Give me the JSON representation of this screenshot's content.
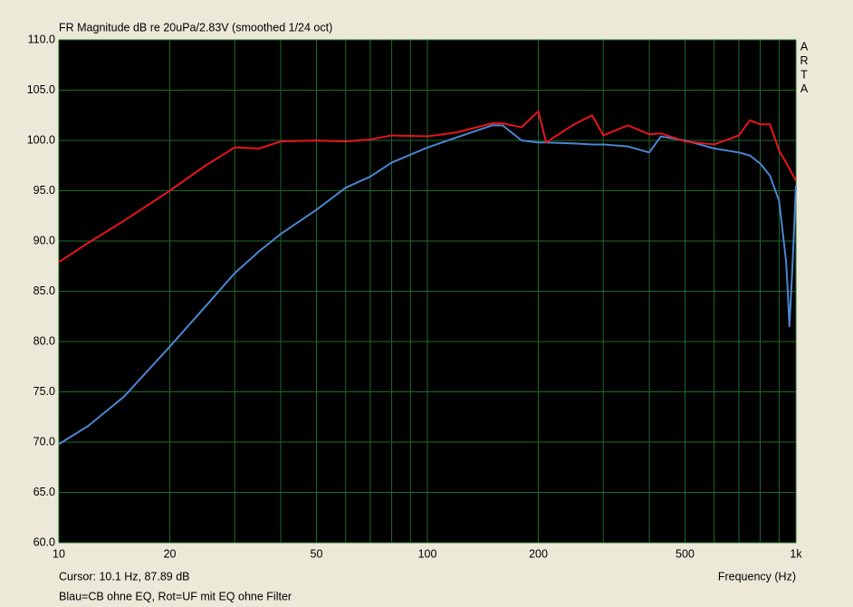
{
  "chart_data": {
    "type": "line",
    "title": "FR Magnitude dB re 20uPa/2.83V (smoothed 1/24 oct)",
    "watermark": "ARTA",
    "cursor_text": "Cursor: 10.1 Hz, 87.89 dB",
    "x_label": "Frequency (Hz)",
    "note": "Blau=CB ohne EQ, Rot=UF mit EQ ohne Filter",
    "xscale": "log",
    "grid": true,
    "xlim": [
      10,
      1000
    ],
    "ylim": [
      60,
      110
    ],
    "xticks": [
      10,
      20,
      50,
      100,
      200,
      500,
      {
        "value": 1000,
        "label": "1k"
      }
    ],
    "xminorticks": [
      30,
      40,
      60,
      70,
      80,
      90,
      300,
      400,
      600,
      700,
      800,
      900
    ],
    "yticks": [
      {
        "value": 60,
        "label": "60.0"
      },
      {
        "value": 65,
        "label": "65.0"
      },
      {
        "value": 70,
        "label": "70.0"
      },
      {
        "value": 75,
        "label": "75.0"
      },
      {
        "value": 80,
        "label": "80.0"
      },
      {
        "value": 85,
        "label": "85.0"
      },
      {
        "value": 90,
        "label": "90.0"
      },
      {
        "value": 95,
        "label": "95.0"
      },
      {
        "value": 100,
        "label": "100.0"
      },
      {
        "value": 105,
        "label": "105.0"
      },
      {
        "value": 110,
        "label": "110.0"
      }
    ],
    "x": [
      10,
      12,
      15,
      20,
      25,
      30,
      35,
      40,
      50,
      60,
      70,
      80,
      100,
      120,
      150,
      160,
      180,
      200,
      210,
      250,
      280,
      300,
      350,
      400,
      430,
      500,
      600,
      700,
      750,
      800,
      850,
      900,
      940,
      950,
      960,
      980,
      1000
    ],
    "series": [
      {
        "color": "#4a86d0",
        "values": [
          69.8,
          71.6,
          74.5,
          79.5,
          83.5,
          86.8,
          89.0,
          90.7,
          93.1,
          95.3,
          96.4,
          97.8,
          99.3,
          100.3,
          101.5,
          101.5,
          100.0,
          99.8,
          99.8,
          99.7,
          99.6,
          99.6,
          99.4,
          98.8,
          100.4,
          100.0,
          99.2,
          98.8,
          98.5,
          97.7,
          96.5,
          94.0,
          88.0,
          85.0,
          81.5,
          88.0,
          95.5
        ]
      },
      {
        "color": "#e8141c",
        "values": [
          87.9,
          89.8,
          92.0,
          95.0,
          97.5,
          99.3,
          99.2,
          99.9,
          100.0,
          99.9,
          100.1,
          100.5,
          100.4,
          100.8,
          101.7,
          101.7,
          101.3,
          102.9,
          99.8,
          101.6,
          102.5,
          100.5,
          101.5,
          100.6,
          100.7,
          99.9,
          99.6,
          100.5,
          102.0,
          101.6,
          101.6,
          99.0,
          97.8,
          97.5,
          97.2,
          96.6,
          96.0
        ]
      }
    ]
  }
}
